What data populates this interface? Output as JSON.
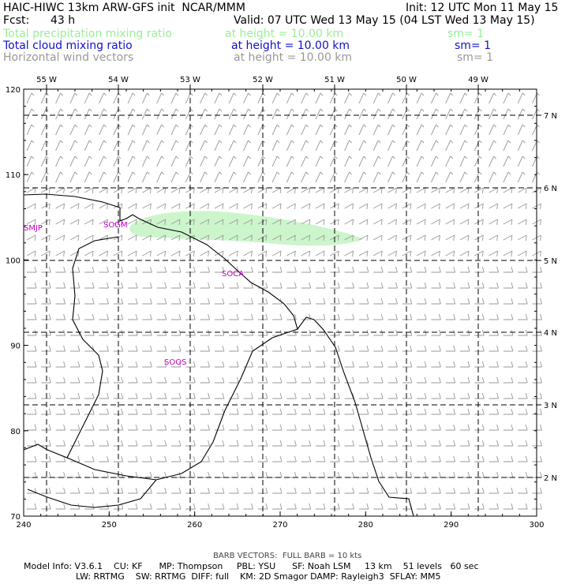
{
  "header": {
    "title": "HAIC-HIWC 13km ARW-GFS init  NCAR/MMM",
    "init": "Init: 12 UTC Mon 11 May 15",
    "fcst_label": "Fcst:",
    "fcst_value": "43 h",
    "valid": "Valid: 07 UTC Wed 13 May 15 (04 LST Wed 13 May 15)"
  },
  "fields": [
    {
      "name": "Total precipitation mixing ratio",
      "height": "at height = 10.00 km",
      "sm": "sm= 1",
      "color": "#99ee99"
    },
    {
      "name": "Total cloud mixing ratio",
      "height": "at height = 10.00 km",
      "sm": "sm= 1",
      "color": "#1010cc"
    },
    {
      "name": "Horizontal wind vectors",
      "height": "at height = 10.00 km",
      "sm": "sm= 1",
      "color": "#999999"
    }
  ],
  "map": {
    "x_ticks": [
      "240",
      "250",
      "260",
      "270",
      "280",
      "290",
      "300"
    ],
    "y_ticks": [
      "70",
      "80",
      "90",
      "100",
      "110",
      "120"
    ],
    "lon_labels": [
      "55 W",
      "54 W",
      "53 W",
      "52 W",
      "51 W",
      "50 W",
      "49 W"
    ],
    "lat_labels": [
      "2 N",
      "3 N",
      "4 N",
      "5 N",
      "6 N",
      "7 N"
    ],
    "stations": [
      "SMJP",
      "SOGM",
      "SOCA",
      "SOOS"
    ],
    "precip_color": "#ccf5cc",
    "coast_color": "#000000",
    "barb_color": "#999999",
    "grid_color": "#000000"
  },
  "footer": {
    "barb_note": "BARB VECTORS:  FULL BARB = 10 kts",
    "line1": "Model Info: V3.6.1    CU: KF      MP: Thompson     PBL: YSU      SF: Noah LSM     13 km    51 levels   60 sec",
    "line2": "LW: RRTMG    SW: RRTMG  DIFF: full    KM: 2D Smagor DAMP: Rayleigh3  SFLAY: MM5"
  }
}
